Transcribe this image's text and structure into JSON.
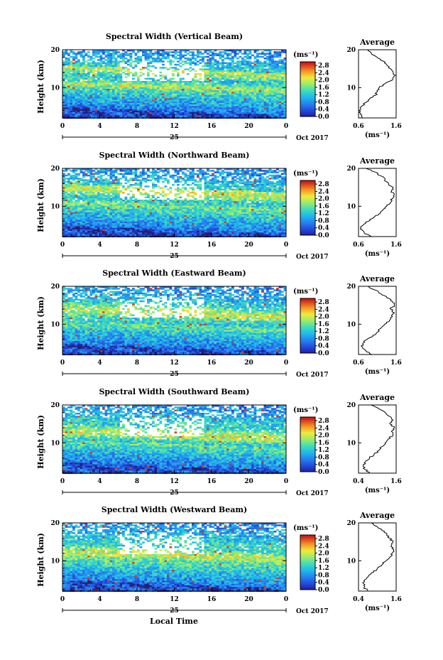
{
  "x_axis_label": "Local Time",
  "date_label": "Oct 2017",
  "day_label": "25",
  "average_title": "Average",
  "y_label": "Height (km)",
  "unit_label": "(ms⁻¹)",
  "colorbar_ticks": [
    "2.8",
    "2.4",
    "2.0",
    "1.6",
    "1.2",
    "0.8",
    "0.4",
    "0.0"
  ],
  "time_ticks": [
    "0",
    "4",
    "8",
    "12",
    "16",
    "20",
    "0"
  ],
  "height_ticks": [
    "20",
    "10"
  ],
  "colors": {
    "low": "#2a3bd6",
    "mid_low": "#1fa8e8",
    "mid": "#3fd3b0",
    "mid_high": "#e8e83a",
    "high": "#e84a1f",
    "very_high": "#c41212"
  },
  "chart_data": [
    {
      "type": "heatmap",
      "title": "Spectral Width (Vertical Beam)",
      "x_range": [
        0,
        24
      ],
      "y_range": [
        2,
        20
      ],
      "colorbar_range": [
        0.0,
        3.0
      ],
      "profile": {
        "type": "line",
        "title": "Average",
        "x_ticks": [
          "0.6",
          "1.6"
        ],
        "x_range": [
          0.6,
          1.6
        ],
        "heights": [
          2,
          3,
          4,
          5,
          6,
          7,
          8,
          9,
          10,
          11,
          12,
          13,
          14,
          15,
          16,
          17,
          18,
          19,
          20
        ],
        "values": [
          0.7,
          0.65,
          0.62,
          0.68,
          0.78,
          0.9,
          1.05,
          1.1,
          1.15,
          1.3,
          1.5,
          1.55,
          1.52,
          1.45,
          1.35,
          1.25,
          1.1,
          0.95,
          0.85
        ]
      }
    },
    {
      "type": "heatmap",
      "title": "Spectral Width (Northward Beam)",
      "x_range": [
        0,
        24
      ],
      "y_range": [
        2,
        20
      ],
      "colorbar_range": [
        0.0,
        3.0
      ],
      "profile": {
        "type": "line",
        "title": "Average",
        "x_ticks": [
          "0.6",
          "1.6"
        ],
        "x_range": [
          0.6,
          1.6
        ],
        "heights": [
          2,
          3,
          4,
          5,
          6,
          7,
          8,
          9,
          10,
          11,
          12,
          13,
          14,
          15,
          16,
          17,
          18,
          19,
          20
        ],
        "values": [
          0.95,
          0.75,
          0.65,
          0.72,
          0.85,
          1.0,
          1.15,
          1.25,
          1.35,
          1.45,
          1.5,
          1.55,
          1.48,
          1.52,
          1.4,
          1.3,
          1.2,
          1.05,
          0.8
        ]
      }
    },
    {
      "type": "heatmap",
      "title": "Spectral Width (Eastward Beam)",
      "x_range": [
        0,
        24
      ],
      "y_range": [
        2,
        20
      ],
      "colorbar_range": [
        0.0,
        3.0
      ],
      "profile": {
        "type": "line",
        "title": "Average",
        "x_ticks": [
          "0.6",
          "1.6"
        ],
        "x_range": [
          0.6,
          1.6
        ],
        "heights": [
          2,
          3,
          4,
          5,
          6,
          7,
          8,
          9,
          10,
          11,
          12,
          13,
          14,
          15,
          16,
          17,
          18,
          19,
          20
        ],
        "values": [
          0.95,
          0.8,
          0.7,
          0.72,
          0.82,
          0.98,
          1.12,
          1.2,
          1.3,
          1.42,
          1.5,
          1.55,
          1.45,
          1.55,
          1.5,
          1.35,
          1.2,
          1.05,
          0.85
        ]
      }
    },
    {
      "type": "heatmap",
      "title": "Spectral Width (Southward Beam)",
      "x_range": [
        0,
        24
      ],
      "y_range": [
        2,
        20
      ],
      "colorbar_range": [
        0.0,
        3.0
      ],
      "profile": {
        "type": "line",
        "title": "Average",
        "x_ticks": [
          "0.4",
          "1.6"
        ],
        "x_range": [
          0.4,
          1.6
        ],
        "heights": [
          2,
          3,
          4,
          5,
          6,
          7,
          8,
          9,
          10,
          11,
          12,
          13,
          14,
          15,
          16,
          17,
          18,
          19,
          20
        ],
        "values": [
          0.75,
          0.6,
          0.55,
          0.62,
          0.75,
          0.9,
          1.05,
          1.15,
          1.25,
          1.35,
          1.5,
          1.45,
          1.55,
          1.4,
          1.5,
          1.38,
          1.25,
          1.05,
          0.8
        ]
      }
    },
    {
      "type": "heatmap",
      "title": "Spectral Width (Westward Beam)",
      "x_range": [
        0,
        24
      ],
      "y_range": [
        2,
        20
      ],
      "colorbar_range": [
        0.0,
        3.0
      ],
      "profile": {
        "type": "line",
        "title": "Average",
        "x_ticks": [
          "0.4",
          "1.6"
        ],
        "x_range": [
          0.4,
          1.6
        ],
        "heights": [
          2,
          3,
          4,
          5,
          6,
          7,
          8,
          9,
          10,
          11,
          12,
          13,
          14,
          15,
          16,
          17,
          18,
          19,
          20
        ],
        "values": [
          0.7,
          0.58,
          0.55,
          0.6,
          0.72,
          0.88,
          1.0,
          1.15,
          1.28,
          1.4,
          1.48,
          1.52,
          1.45,
          1.5,
          1.38,
          1.3,
          1.15,
          1.0,
          0.8
        ]
      }
    }
  ]
}
